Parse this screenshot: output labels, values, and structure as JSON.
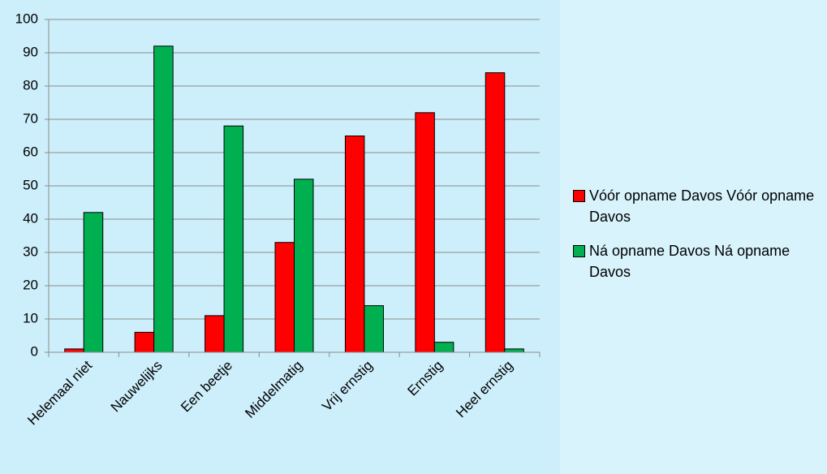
{
  "chart_data": {
    "type": "bar",
    "categories": [
      "Helemaal niet",
      "Nauwelijks",
      "Een beetje",
      "Middelmatig",
      "Vrij ernstig",
      "Ernstig",
      "Heel ernstig"
    ],
    "series": [
      {
        "name": "Vóór opname Davos Vóór opname Davos",
        "color": "#ff0000",
        "values": [
          1,
          6,
          11,
          33,
          65,
          72,
          84
        ]
      },
      {
        "name": "Ná opname Davos Ná opname Davos",
        "color": "#00b050",
        "values": [
          42,
          92,
          68,
          52,
          14,
          3,
          1
        ]
      }
    ],
    "ylim": [
      0,
      100
    ],
    "yticks": [
      0,
      10,
      20,
      30,
      40,
      50,
      60,
      70,
      80,
      90,
      100
    ],
    "grid": true,
    "legend": "right"
  }
}
